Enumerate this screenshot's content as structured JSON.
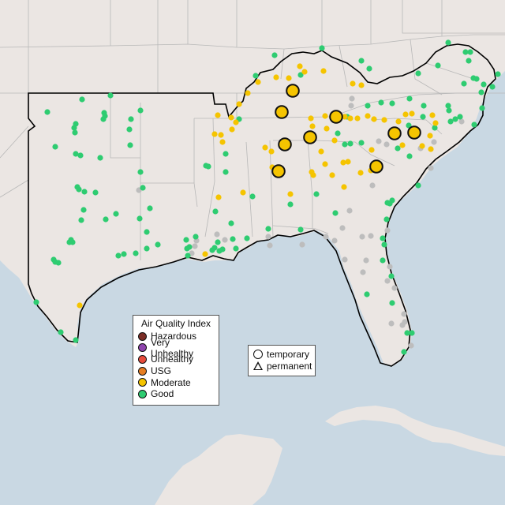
{
  "colors": {
    "water": "#c9d8e3",
    "land": "#ebe6e3",
    "border": "#b8b8b8",
    "region_outline": "#000000",
    "good": "#2ecc71",
    "moderate": "#f5c400",
    "usg": "#e67e22",
    "unhealthy": "#e74c3c",
    "very_unhealthy": "#8e44ad",
    "hazardous": "#7b2d26",
    "no_data": "#bdbdbd"
  },
  "legend": {
    "title": "Air Quality Index",
    "items": [
      {
        "label": "Hazardous",
        "color": "#7b2d26"
      },
      {
        "label": "Very Unhealthy",
        "color": "#8e44ad"
      },
      {
        "label": "Unhealthy",
        "color": "#e74c3c"
      },
      {
        "label": "USG",
        "color": "#e67e22"
      },
      {
        "label": "Moderate",
        "color": "#f5c400"
      },
      {
        "label": "Good",
        "color": "#2ecc71"
      }
    ]
  },
  "monitor_types": {
    "temporary": "temporary",
    "permanent": "permanent"
  },
  "monitors": {
    "large_moderate": [
      [
        371,
        115
      ],
      [
        357,
        142
      ],
      [
        426,
        148
      ],
      [
        393,
        174
      ],
      [
        361,
        183
      ],
      [
        500,
        169
      ],
      [
        525,
        168
      ],
      [
        477,
        211
      ],
      [
        353,
        217
      ]
    ],
    "moderate": [
      [
        276,
        146
      ],
      [
        293,
        149
      ],
      [
        303,
        132
      ],
      [
        314,
        118
      ],
      [
        327,
        104
      ],
      [
        350,
        98
      ],
      [
        366,
        99
      ],
      [
        380,
        84
      ],
      [
        386,
        91
      ],
      [
        410,
        90
      ],
      [
        447,
        106
      ],
      [
        458,
        108
      ],
      [
        394,
        150
      ],
      [
        396,
        160
      ],
      [
        412,
        147
      ],
      [
        414,
        163
      ],
      [
        437,
        148
      ],
      [
        444,
        150
      ],
      [
        453,
        150
      ],
      [
        466,
        147
      ],
      [
        474,
        151
      ],
      [
        487,
        152
      ],
      [
        505,
        154
      ],
      [
        514,
        145
      ],
      [
        522,
        144
      ],
      [
        548,
        146
      ],
      [
        552,
        156
      ],
      [
        505,
        170
      ],
      [
        545,
        172
      ],
      [
        546,
        189
      ],
      [
        535,
        185
      ],
      [
        510,
        184
      ],
      [
        471,
        190
      ],
      [
        475,
        212
      ],
      [
        457,
        219
      ],
      [
        470,
        216
      ],
      [
        424,
        178
      ],
      [
        407,
        192
      ],
      [
        412,
        208
      ],
      [
        421,
        222
      ],
      [
        435,
        206
      ],
      [
        441,
        205
      ],
      [
        395,
        218
      ],
      [
        397,
        222
      ],
      [
        436,
        237
      ],
      [
        272,
        170
      ],
      [
        280,
        171
      ],
      [
        282,
        180
      ],
      [
        294,
        164
      ],
      [
        299,
        155
      ],
      [
        277,
        250
      ],
      [
        336,
        187
      ],
      [
        344,
        192
      ],
      [
        345,
        212
      ],
      [
        368,
        246
      ],
      [
        308,
        244
      ],
      [
        260,
        322
      ],
      [
        101,
        387
      ]
    ],
    "good": [
      [
        60,
        142
      ],
      [
        104,
        126
      ],
      [
        132,
        143
      ],
      [
        140,
        121
      ],
      [
        178,
        140
      ],
      [
        70,
        186
      ],
      [
        96,
        157
      ],
      [
        94,
        162
      ],
      [
        95,
        168
      ],
      [
        131,
        151
      ],
      [
        133,
        147
      ],
      [
        166,
        151
      ],
      [
        164,
        164
      ],
      [
        165,
        184
      ],
      [
        96,
        195
      ],
      [
        102,
        197
      ],
      [
        127,
        200
      ],
      [
        178,
        218
      ],
      [
        100,
        240
      ],
      [
        107,
        243
      ],
      [
        121,
        244
      ],
      [
        98,
        237
      ],
      [
        190,
        264
      ],
      [
        106,
        266
      ],
      [
        103,
        279
      ],
      [
        134,
        278
      ],
      [
        147,
        271
      ],
      [
        177,
        277
      ],
      [
        186,
        294
      ],
      [
        200,
        310
      ],
      [
        90,
        304
      ],
      [
        88,
        307
      ],
      [
        92,
        307
      ],
      [
        150,
        324
      ],
      [
        157,
        322
      ],
      [
        172,
        321
      ],
      [
        186,
        315
      ],
      [
        68,
        329
      ],
      [
        74,
        333
      ],
      [
        70,
        332
      ],
      [
        236,
        304
      ],
      [
        238,
        324
      ],
      [
        237,
        315
      ],
      [
        272,
        314
      ],
      [
        278,
        318
      ],
      [
        282,
        316
      ],
      [
        293,
        283
      ],
      [
        295,
        303
      ],
      [
        276,
        307
      ],
      [
        240,
        313
      ],
      [
        269,
        317
      ],
      [
        248,
        300
      ],
      [
        313,
        302
      ],
      [
        299,
        315
      ],
      [
        320,
        249
      ],
      [
        368,
        259
      ],
      [
        381,
        291
      ],
      [
        401,
        246
      ],
      [
        425,
        270
      ],
      [
        340,
        290
      ],
      [
        428,
        169
      ],
      [
        437,
        183
      ],
      [
        458,
        181
      ],
      [
        444,
        182
      ],
      [
        440,
        148
      ],
      [
        466,
        134
      ],
      [
        497,
        131
      ],
      [
        537,
        134
      ],
      [
        536,
        148
      ],
      [
        518,
        159
      ],
      [
        551,
        162
      ],
      [
        568,
        134
      ],
      [
        569,
        140
      ],
      [
        571,
        154
      ],
      [
        577,
        151
      ],
      [
        588,
        106
      ],
      [
        600,
        99
      ],
      [
        604,
        100
      ],
      [
        610,
        117
      ],
      [
        613,
        107
      ],
      [
        611,
        137
      ],
      [
        631,
        94
      ],
      [
        624,
        110
      ],
      [
        583,
        148
      ],
      [
        601,
        158
      ],
      [
        596,
        66
      ],
      [
        590,
        66
      ],
      [
        594,
        77
      ],
      [
        568,
        54
      ],
      [
        555,
        83
      ],
      [
        530,
        93
      ],
      [
        519,
        125
      ],
      [
        483,
        130
      ],
      [
        468,
        87
      ],
      [
        458,
        77
      ],
      [
        408,
        61
      ],
      [
        381,
        95
      ],
      [
        348,
        70
      ],
      [
        324,
        96
      ],
      [
        303,
        151
      ],
      [
        261,
        210
      ],
      [
        286,
        195
      ],
      [
        286,
        218
      ],
      [
        273,
        268
      ],
      [
        264,
        211
      ],
      [
        491,
        257
      ],
      [
        494,
        258
      ],
      [
        497,
        254
      ],
      [
        504,
        188
      ],
      [
        519,
        198
      ],
      [
        530,
        235
      ],
      [
        490,
        278
      ],
      [
        485,
        302
      ],
      [
        487,
        310
      ],
      [
        485,
        330
      ],
      [
        496,
        350
      ],
      [
        497,
        384
      ],
      [
        465,
        373
      ],
      [
        516,
        422
      ],
      [
        512,
        446
      ],
      [
        522,
        422
      ],
      [
        46,
        383
      ],
      [
        77,
        421
      ],
      [
        96,
        431
      ],
      [
        181,
        238
      ]
    ],
    "no_data": [
      [
        176,
        241
      ],
      [
        247,
        312
      ],
      [
        243,
        321
      ],
      [
        249,
        305
      ],
      [
        285,
        304
      ],
      [
        275,
        297
      ],
      [
        446,
        125
      ],
      [
        445,
        134
      ],
      [
        472,
        235
      ],
      [
        443,
        267
      ],
      [
        434,
        289
      ],
      [
        459,
        300
      ],
      [
        470,
        299
      ],
      [
        491,
        292
      ],
      [
        413,
        300
      ],
      [
        437,
        329
      ],
      [
        424,
        305
      ],
      [
        460,
        345
      ],
      [
        464,
        330
      ],
      [
        491,
        356
      ],
      [
        494,
        338
      ],
      [
        500,
        365
      ],
      [
        512,
        398
      ],
      [
        496,
        410
      ],
      [
        513,
        408
      ],
      [
        510,
        412
      ],
      [
        383,
        310
      ],
      [
        340,
        300
      ],
      [
        342,
        311
      ],
      [
        480,
        179
      ],
      [
        490,
        183
      ],
      [
        585,
        154
      ],
      [
        546,
        213
      ],
      [
        521,
        438
      ],
      [
        550,
        180
      ],
      [
        533,
        188
      ]
    ]
  }
}
